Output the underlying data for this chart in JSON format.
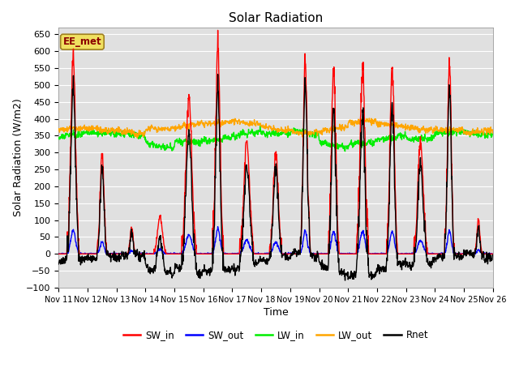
{
  "title": "Solar Radiation",
  "xlabel": "Time",
  "ylabel": "Solar Radiation (W/m2)",
  "ylim": [
    -100,
    670
  ],
  "yticks": [
    -100,
    -50,
    0,
    50,
    100,
    150,
    200,
    250,
    300,
    350,
    400,
    450,
    500,
    550,
    600,
    650
  ],
  "station_label": "EE_met",
  "plot_bg_color": "#e0e0e0",
  "fig_bg_color": "#ffffff",
  "line_colors": {
    "SW_in": "#ff0000",
    "SW_out": "#0000ff",
    "LW_in": "#00ee00",
    "LW_out": "#ffa500",
    "Rnet": "#000000"
  },
  "line_widths": {
    "SW_in": 1.0,
    "SW_out": 1.0,
    "LW_in": 1.0,
    "LW_out": 1.0,
    "Rnet": 1.0
  },
  "legend_labels": [
    "SW_in",
    "SW_out",
    "LW_in",
    "LW_out",
    "Rnet"
  ],
  "n_days": 15,
  "dt_hours": 0.25,
  "sw_peaks": [
    580,
    300,
    80,
    110,
    460,
    610,
    330,
    300,
    570,
    550,
    550,
    550,
    340,
    560,
    100
  ],
  "sw_durations": [
    5.0,
    4.0,
    3.0,
    5.0,
    6.0,
    4.5,
    6.0,
    5.0,
    4.0,
    4.5,
    5.0,
    4.5,
    5.5,
    4.0,
    3.0
  ],
  "sw_peak_hours": [
    12.0,
    12.0,
    12.5,
    12.0,
    12.0,
    12.0,
    12.0,
    12.0,
    12.5,
    12.0,
    12.0,
    12.5,
    12.0,
    12.0,
    12.0
  ],
  "lw_in_base": 340,
  "lw_out_base": 368,
  "grid_color": "#ffffff",
  "x_tick_fontsize": 7,
  "y_tick_fontsize": 8
}
